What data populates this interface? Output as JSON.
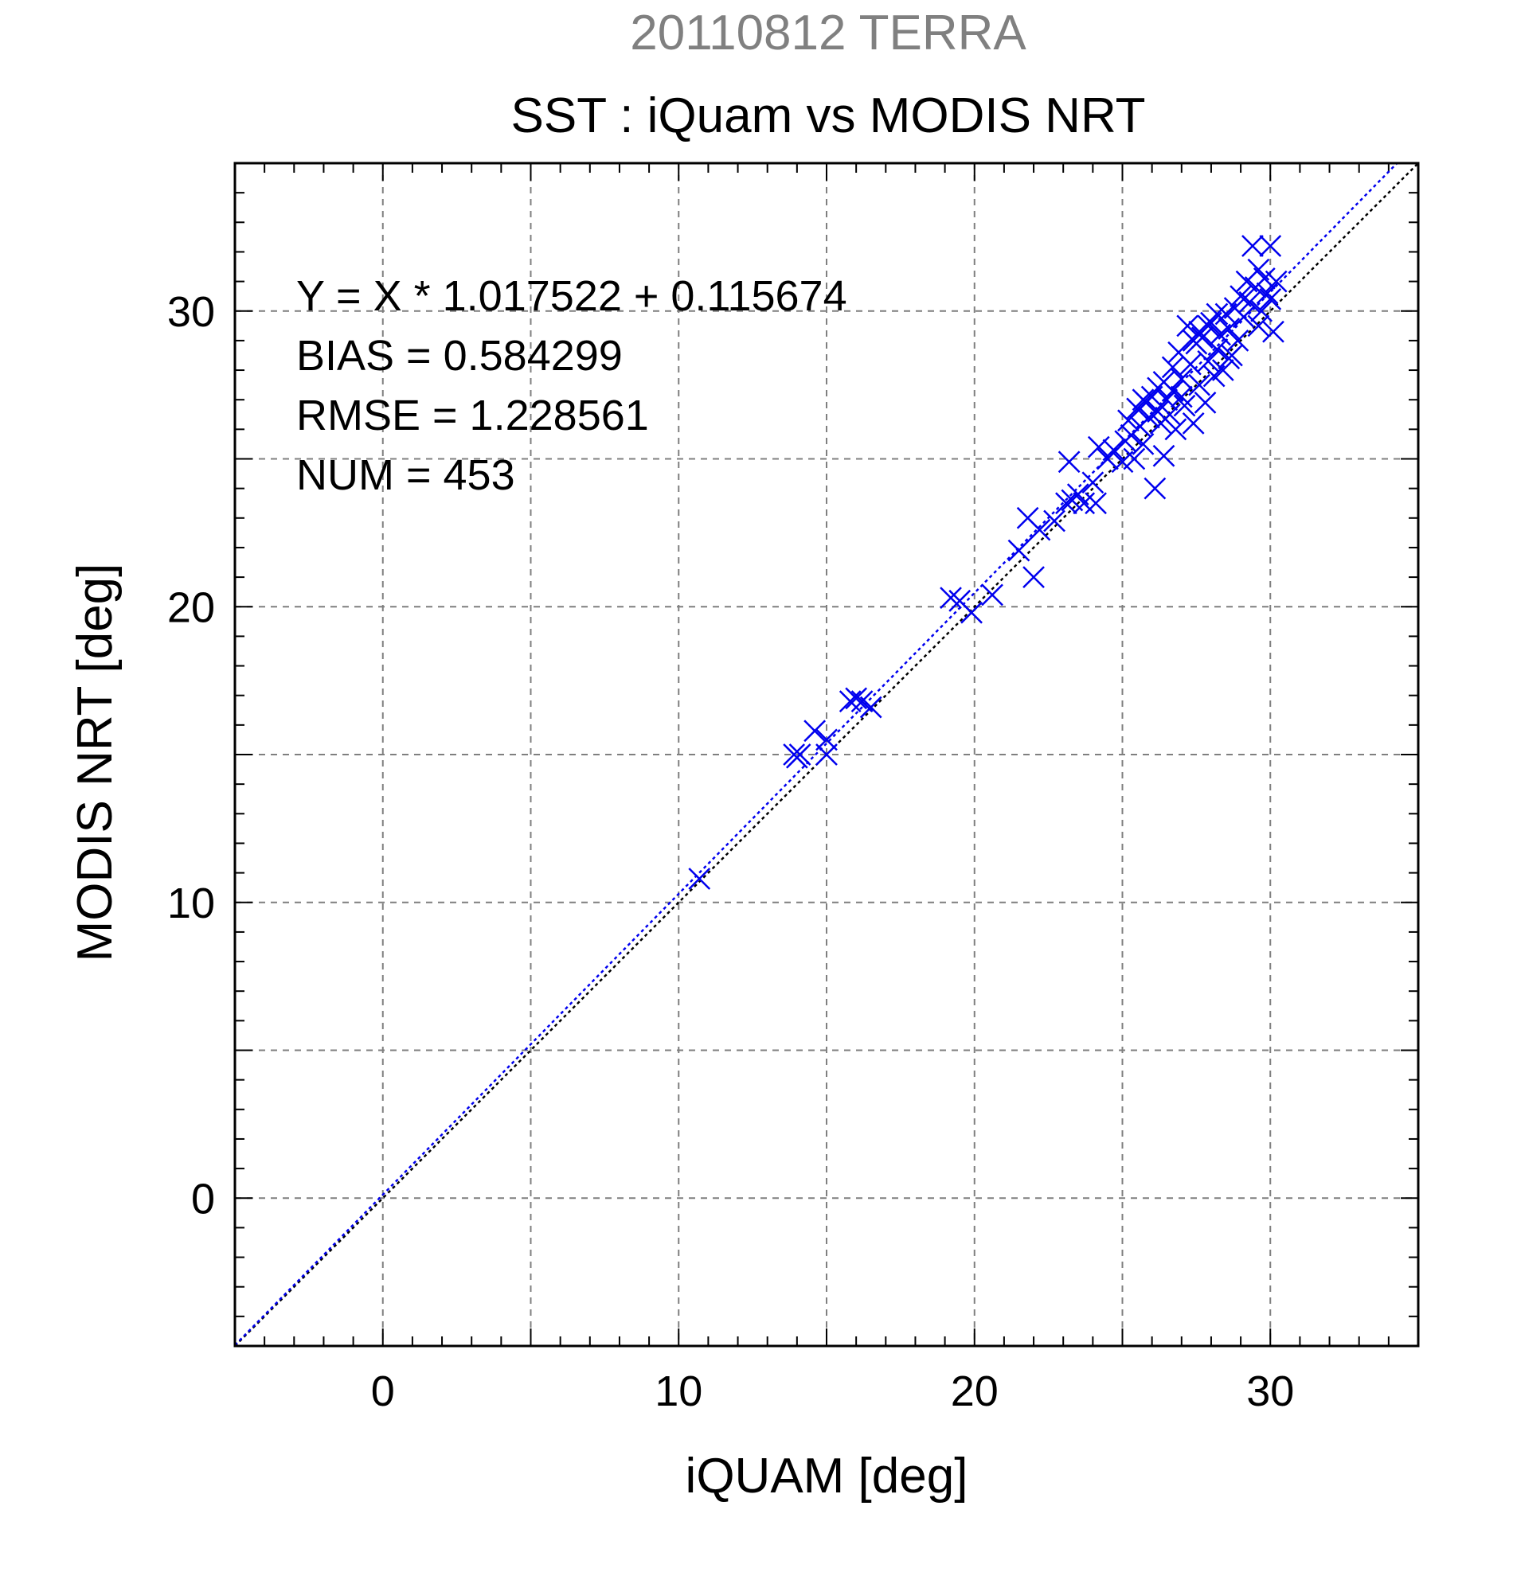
{
  "chart_data": {
    "type": "scatter",
    "supertitle": "20110812 TERRA",
    "title": "SST : iQuam vs MODIS NRT",
    "xlabel": "iQUAM [deg]",
    "ylabel": "MODIS NRT [deg]",
    "xlim": [
      -5,
      35
    ],
    "ylim": [
      -5,
      35
    ],
    "xticks": [
      0,
      10,
      20,
      30
    ],
    "yticks": [
      0,
      10,
      20,
      30
    ],
    "grid": true,
    "annotations": [
      "Y = X * 1.017522 + 0.115674",
      "BIAS = 0.584299",
      "RMSE = 1.228561",
      "NUM = 453"
    ],
    "fit": {
      "slope": 1.017522,
      "intercept": 0.115674
    },
    "colors": {
      "points": "#0000ee",
      "fit_line": "#0000ee",
      "identity_line": "#000000",
      "supertitle": "#808080"
    },
    "points": [
      [
        10.7,
        10.8
      ],
      [
        13.9,
        15.0
      ],
      [
        14.0,
        14.9
      ],
      [
        14.1,
        15.0
      ],
      [
        14.6,
        15.8
      ],
      [
        15.0,
        15.5
      ],
      [
        15.0,
        15.0
      ],
      [
        15.8,
        16.8
      ],
      [
        16.0,
        16.9
      ],
      [
        16.2,
        16.8
      ],
      [
        16.5,
        16.6
      ],
      [
        19.2,
        20.3
      ],
      [
        19.5,
        20.2
      ],
      [
        19.9,
        19.8
      ],
      [
        20.6,
        20.4
      ],
      [
        21.5,
        21.9
      ],
      [
        21.8,
        23.0
      ],
      [
        22.0,
        21.0
      ],
      [
        22.2,
        22.6
      ],
      [
        22.7,
        22.9
      ],
      [
        23.1,
        23.5
      ],
      [
        23.2,
        24.9
      ],
      [
        23.3,
        23.6
      ],
      [
        23.5,
        23.8
      ],
      [
        23.7,
        23.5
      ],
      [
        24.0,
        24.2
      ],
      [
        24.1,
        23.5
      ],
      [
        24.2,
        25.4
      ],
      [
        24.5,
        25.0
      ],
      [
        24.7,
        25.3
      ],
      [
        25.0,
        24.9
      ],
      [
        25.1,
        25.6
      ],
      [
        25.2,
        26.3
      ],
      [
        25.3,
        25.8
      ],
      [
        25.4,
        25.0
      ],
      [
        25.5,
        26.7
      ],
      [
        25.6,
        26.1
      ],
      [
        25.7,
        25.5
      ],
      [
        25.8,
        26.9
      ],
      [
        25.9,
        26.4
      ],
      [
        26.0,
        27.1
      ],
      [
        26.1,
        24.0
      ],
      [
        26.2,
        26.6
      ],
      [
        26.3,
        26.2
      ],
      [
        26.4,
        25.1
      ],
      [
        26.5,
        27.0
      ],
      [
        26.6,
        26.5
      ],
      [
        26.7,
        27.3
      ],
      [
        26.8,
        26.0
      ],
      [
        26.9,
        28.6
      ],
      [
        27.0,
        27.7
      ],
      [
        27.1,
        26.8
      ],
      [
        27.2,
        29.5
      ],
      [
        27.3,
        28.2
      ],
      [
        27.4,
        26.2
      ],
      [
        27.5,
        28.9
      ],
      [
        27.6,
        27.5
      ],
      [
        27.7,
        29.1
      ],
      [
        27.8,
        26.9
      ],
      [
        27.9,
        28.3
      ],
      [
        28.0,
        29.6
      ],
      [
        28.1,
        27.8
      ],
      [
        28.2,
        28.7
      ],
      [
        28.3,
        29.2
      ],
      [
        28.4,
        28.0
      ],
      [
        28.5,
        29.9
      ],
      [
        28.6,
        29.4
      ],
      [
        28.7,
        28.5
      ],
      [
        28.8,
        30.1
      ],
      [
        28.9,
        29.0
      ],
      [
        29.0,
        30.5
      ],
      [
        29.1,
        29.8
      ],
      [
        29.2,
        31.0
      ],
      [
        29.3,
        30.3
      ],
      [
        29.4,
        32.2
      ],
      [
        29.5,
        30.8
      ],
      [
        29.6,
        31.4
      ],
      [
        29.7,
        30.0
      ],
      [
        29.8,
        31.1
      ],
      [
        29.9,
        30.6
      ],
      [
        30.0,
        32.2
      ],
      [
        30.1,
        29.3
      ],
      [
        30.2,
        31.0
      ],
      [
        30.0,
        30.4
      ],
      [
        29.6,
        29.5
      ],
      [
        27.4,
        29.0
      ],
      [
        27.6,
        29.3
      ],
      [
        27.9,
        29.5
      ],
      [
        28.2,
        29.9
      ],
      [
        28.6,
        28.4
      ],
      [
        26.4,
        27.6
      ],
      [
        26.7,
        28.1
      ],
      [
        26.2,
        27.4
      ],
      [
        25.7,
        27.0
      ],
      [
        27.0,
        27.1
      ]
    ]
  }
}
